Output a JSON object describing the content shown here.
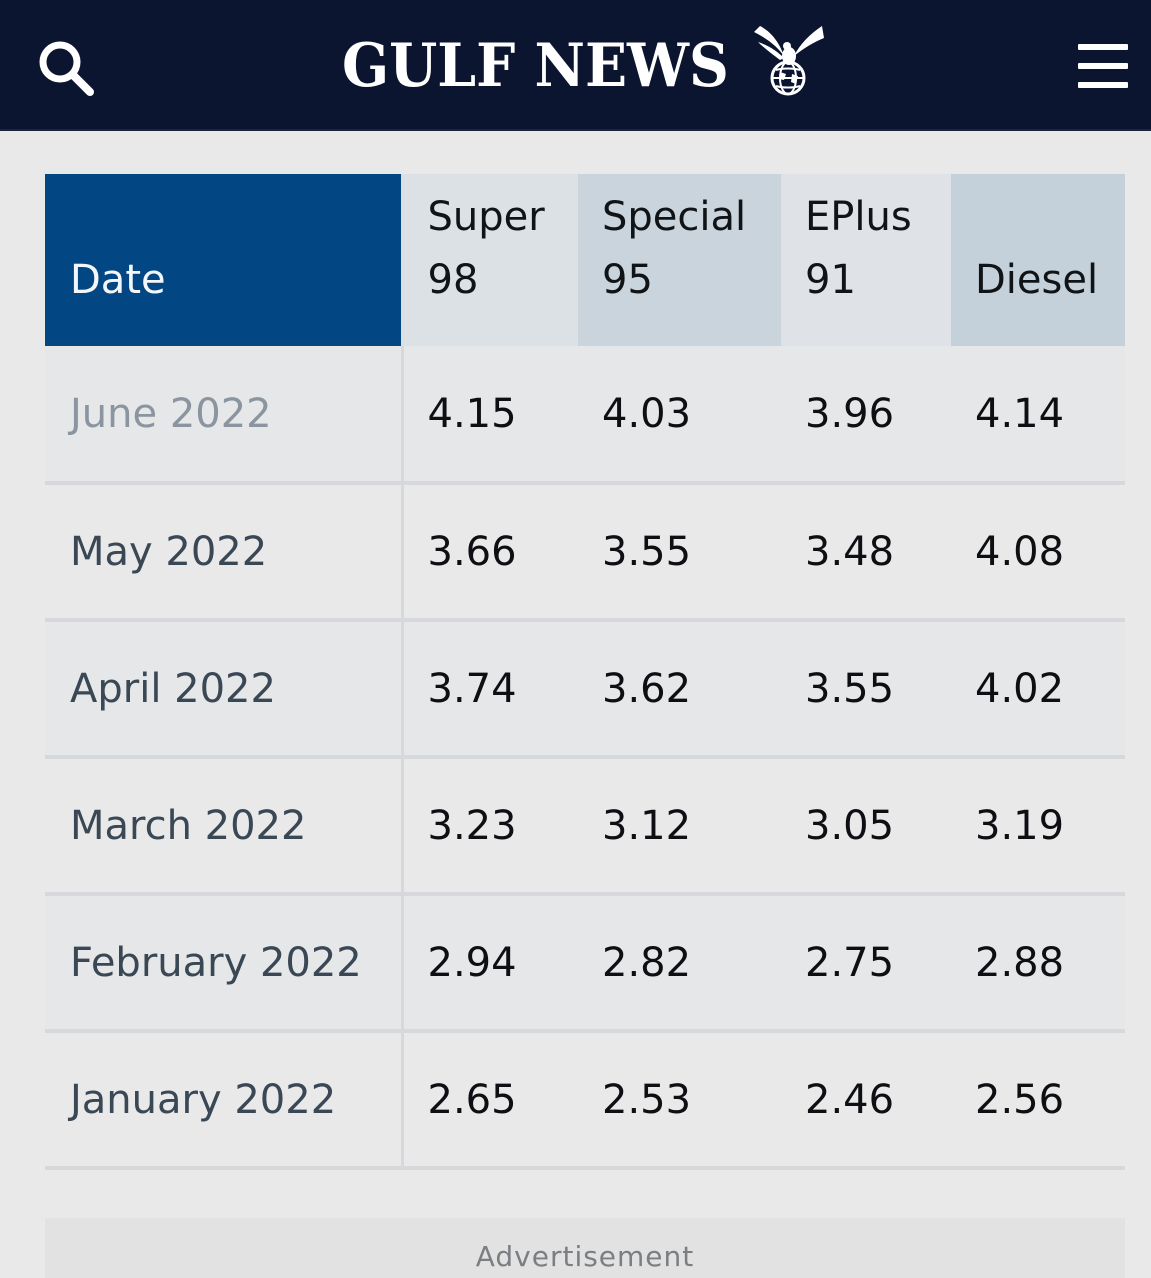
{
  "header": {
    "brand": "GULF NEWS",
    "search_icon": "search-icon",
    "menu_icon": "hamburger-menu-icon",
    "logo_icon": "eagle-globe-logo-icon",
    "background": "#0c1530"
  },
  "table": {
    "columns": [
      "Date",
      "Super 98",
      "Special 95",
      "EPlus 91",
      "Diesel"
    ],
    "rows": [
      {
        "date": "June 2022",
        "super98": "4.15",
        "special95": "4.03",
        "eplus91": "3.96",
        "diesel": "4.14"
      },
      {
        "date": "May 2022",
        "super98": "3.66",
        "special95": "3.55",
        "eplus91": "3.48",
        "diesel": "4.08"
      },
      {
        "date": "April 2022",
        "super98": "3.74",
        "special95": "3.62",
        "eplus91": "3.55",
        "diesel": "4.02"
      },
      {
        "date": "March 2022",
        "super98": "3.23",
        "special95": "3.12",
        "eplus91": "3.05",
        "diesel": "3.19"
      },
      {
        "date": "February 2022",
        "super98": "2.94",
        "special95": "2.82",
        "eplus91": "2.75",
        "diesel": "2.88"
      },
      {
        "date": "January 2022",
        "super98": "2.65",
        "special95": "2.53",
        "eplus91": "2.46",
        "diesel": "2.56"
      }
    ],
    "header_color": "#034684"
  },
  "ad": {
    "label": "Advertisement"
  }
}
